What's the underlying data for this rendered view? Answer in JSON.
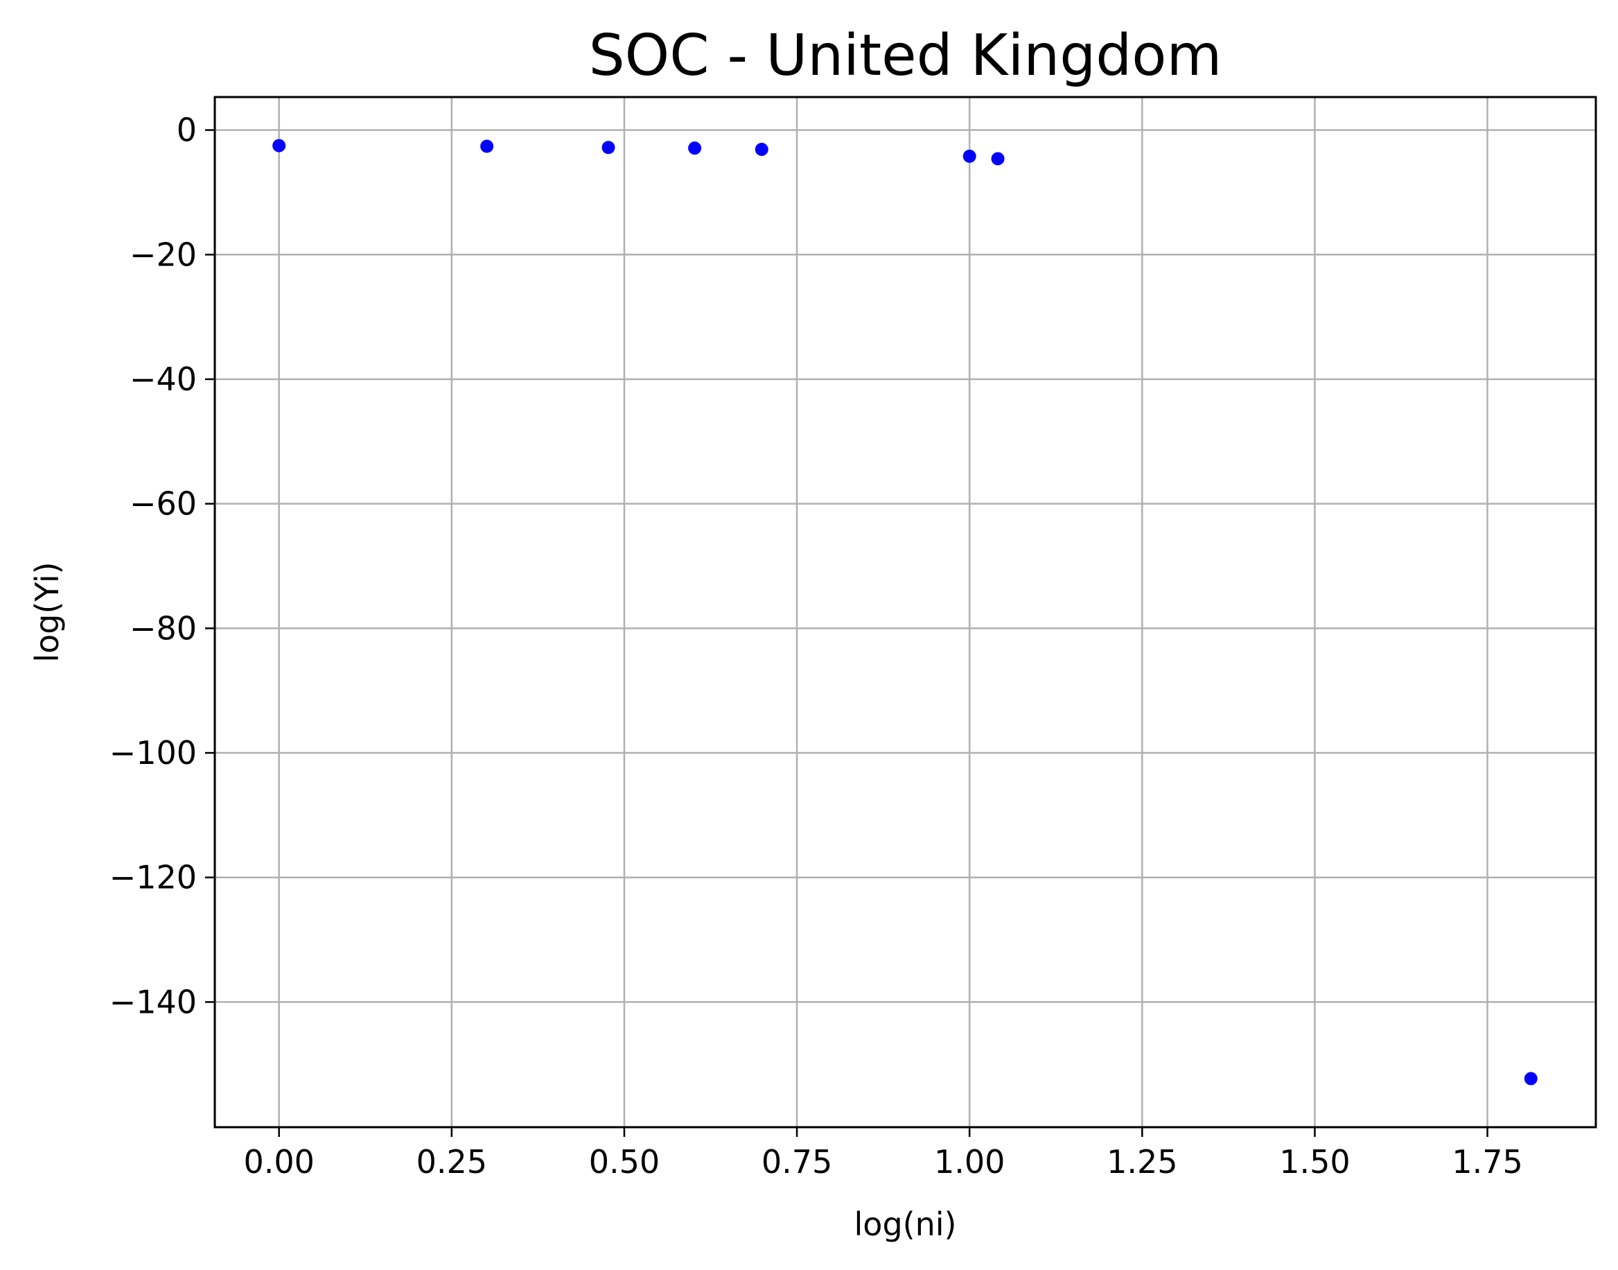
{
  "chart_data": {
    "type": "scatter",
    "title": "SOC - United Kingdom",
    "xlabel": "log(ni)",
    "ylabel": "log(Yi)",
    "xlim": [
      -0.093,
      1.907
    ],
    "ylim": [
      -160.1,
      5.3
    ],
    "xticks": [
      {
        "value": 0.0,
        "label": "0.00"
      },
      {
        "value": 0.25,
        "label": "0.25"
      },
      {
        "value": 0.5,
        "label": "0.50"
      },
      {
        "value": 0.75,
        "label": "0.75"
      },
      {
        "value": 1.0,
        "label": "1.00"
      },
      {
        "value": 1.25,
        "label": "1.25"
      },
      {
        "value": 1.5,
        "label": "1.50"
      },
      {
        "value": 1.75,
        "label": "1.75"
      }
    ],
    "yticks": [
      {
        "value": 0,
        "label": "0"
      },
      {
        "value": -20,
        "label": "−20"
      },
      {
        "value": -40,
        "label": "−40"
      },
      {
        "value": -60,
        "label": "−60"
      },
      {
        "value": -80,
        "label": "−80"
      },
      {
        "value": -100,
        "label": "−100"
      },
      {
        "value": -120,
        "label": "−120"
      },
      {
        "value": -140,
        "label": "−140"
      }
    ],
    "grid": true,
    "marker_color": "#0000ff",
    "grid_color": "#b0b0b0",
    "points": [
      {
        "x": 0.0,
        "y": -2.5
      },
      {
        "x": 0.301,
        "y": -2.6
      },
      {
        "x": 0.477,
        "y": -2.8
      },
      {
        "x": 0.602,
        "y": -2.9
      },
      {
        "x": 0.699,
        "y": -3.1
      },
      {
        "x": 1.0,
        "y": -4.2
      },
      {
        "x": 1.041,
        "y": -4.6
      },
      {
        "x": 1.813,
        "y": -152.3
      }
    ]
  }
}
